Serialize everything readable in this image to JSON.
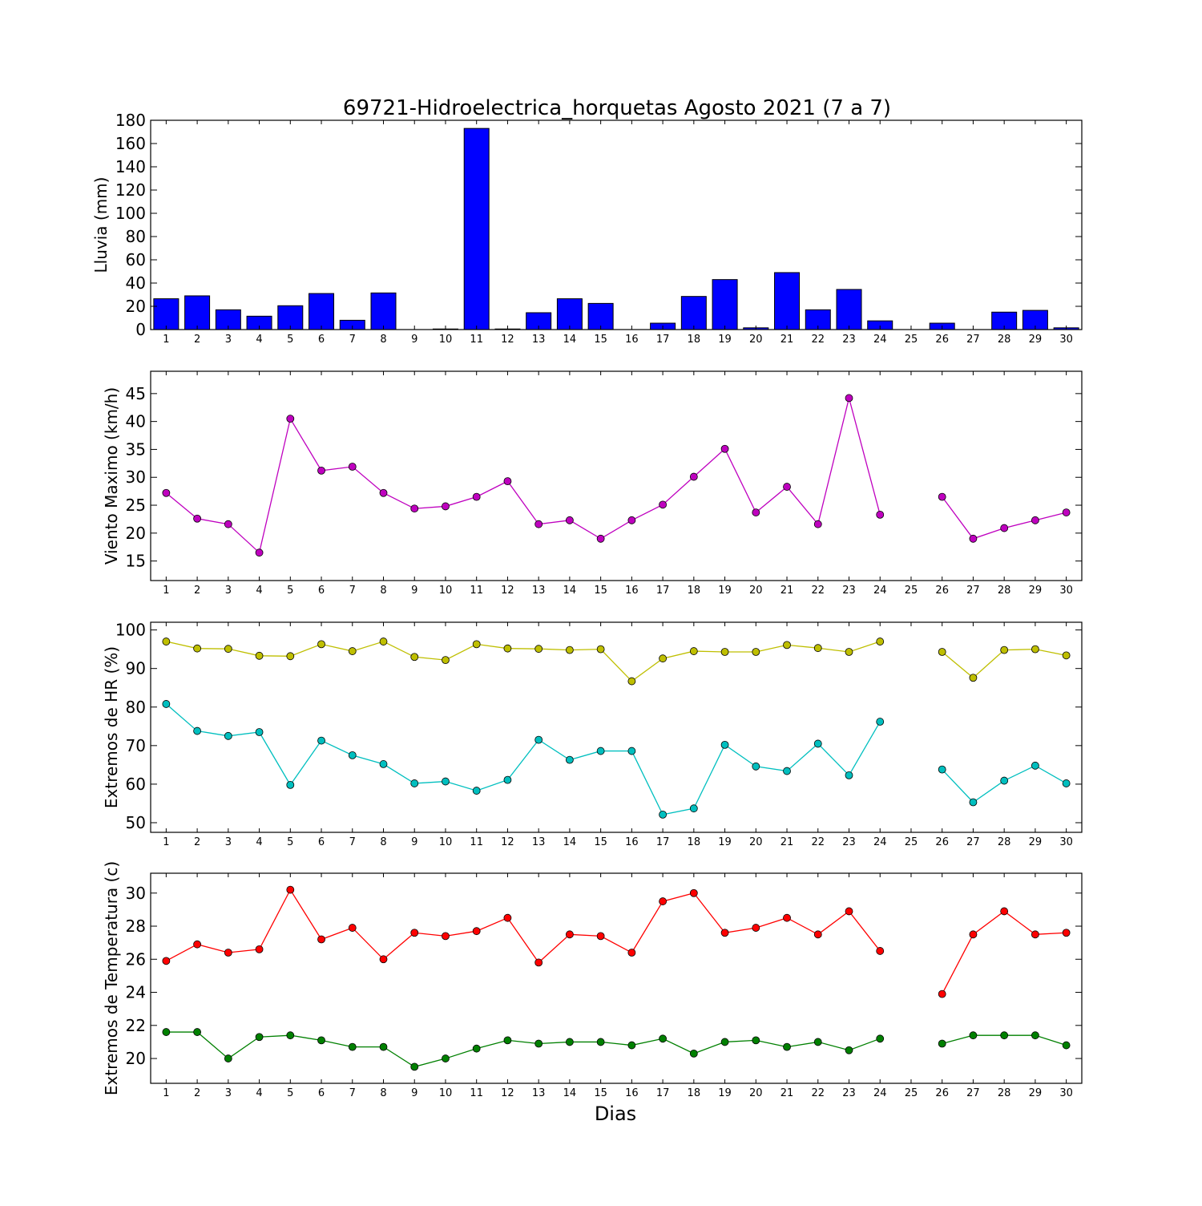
{
  "title": "69721-Hidroelectrica_horquetas Agosto 2021  (7 a 7)",
  "xlabel": "Dias",
  "days": [
    1,
    2,
    3,
    4,
    5,
    6,
    7,
    8,
    9,
    10,
    11,
    12,
    13,
    14,
    15,
    16,
    17,
    18,
    19,
    20,
    21,
    22,
    23,
    24,
    25,
    26,
    27,
    28,
    29,
    30
  ],
  "chart_data": [
    {
      "type": "bar",
      "ylabel": "Lluvia (mm)",
      "ylim": [
        0,
        180
      ],
      "yticks": [
        0,
        20,
        40,
        60,
        80,
        100,
        120,
        140,
        160,
        180
      ],
      "series": [
        {
          "color": "#0000ff",
          "values": [
            26.5,
            29,
            17,
            11.5,
            20.5,
            31,
            8,
            31.5,
            0,
            0.5,
            173,
            0.5,
            14.5,
            26.5,
            22.5,
            0,
            5.5,
            28.5,
            43,
            1.5,
            49,
            17,
            34.5,
            7.5,
            0,
            5.5,
            0,
            15,
            16.5,
            1.5
          ]
        }
      ]
    },
    {
      "type": "line",
      "ylabel": "Viento Maximo (km/h)",
      "ylim": [
        11.5,
        49
      ],
      "yticks": [
        15,
        20,
        25,
        30,
        35,
        40,
        45
      ],
      "series": [
        {
          "color": "#bf00bf",
          "values": [
            27.2,
            22.6,
            21.6,
            16.5,
            40.5,
            31.2,
            31.9,
            27.2,
            24.4,
            24.8,
            26.5,
            29.3,
            21.6,
            22.3,
            19,
            22.3,
            25.1,
            30.1,
            35.1,
            23.7,
            28.3,
            21.6,
            44.2,
            23.3,
            null,
            26.5,
            19,
            20.9,
            22.3,
            23.7
          ]
        }
      ]
    },
    {
      "type": "line",
      "ylabel": "Extremos de HR (%)",
      "ylim": [
        47.5,
        102
      ],
      "yticks": [
        50,
        60,
        70,
        80,
        90,
        100
      ],
      "series": [
        {
          "color": "#bfbf00",
          "values": [
            97,
            95.2,
            95.1,
            93.3,
            93.2,
            96.3,
            94.5,
            97,
            93,
            92.2,
            96.3,
            95.2,
            95.1,
            94.8,
            95,
            86.7,
            92.6,
            94.5,
            94.3,
            94.3,
            96.1,
            95.3,
            94.3,
            97,
            null,
            94.3,
            87.6,
            94.8,
            95,
            93.4
          ]
        },
        {
          "color": "#00bfbf",
          "values": [
            80.8,
            73.8,
            72.5,
            73.5,
            59.8,
            71.3,
            67.5,
            65.2,
            60.2,
            60.7,
            58.3,
            61.1,
            71.5,
            66.3,
            68.6,
            68.6,
            52.1,
            53.7,
            70.2,
            64.6,
            63.4,
            70.5,
            62.3,
            76.2,
            null,
            63.8,
            55.3,
            60.9,
            64.8,
            60.2
          ]
        }
      ]
    },
    {
      "type": "line",
      "ylabel": "Extremos de Temperatura (c)",
      "ylim": [
        18.5,
        31.2
      ],
      "yticks": [
        20,
        22,
        24,
        26,
        28,
        30
      ],
      "series": [
        {
          "color": "#ff0000",
          "values": [
            25.9,
            26.9,
            26.4,
            26.6,
            30.2,
            27.2,
            27.9,
            26,
            27.6,
            27.4,
            27.7,
            28.5,
            25.8,
            27.5,
            27.4,
            26.4,
            29.5,
            30,
            27.6,
            27.9,
            28.5,
            27.5,
            28.9,
            26.5,
            null,
            23.9,
            27.5,
            28.9,
            27.5,
            27.6
          ]
        },
        {
          "color": "#008000",
          "values": [
            21.6,
            21.6,
            20,
            21.3,
            21.4,
            21.1,
            20.7,
            20.7,
            19.5,
            20,
            20.6,
            21.1,
            20.9,
            21,
            21,
            20.8,
            21.2,
            20.3,
            21,
            21.1,
            20.7,
            21,
            20.5,
            21.2,
            null,
            20.9,
            21.4,
            21.4,
            21.4,
            20.8
          ]
        }
      ]
    }
  ]
}
